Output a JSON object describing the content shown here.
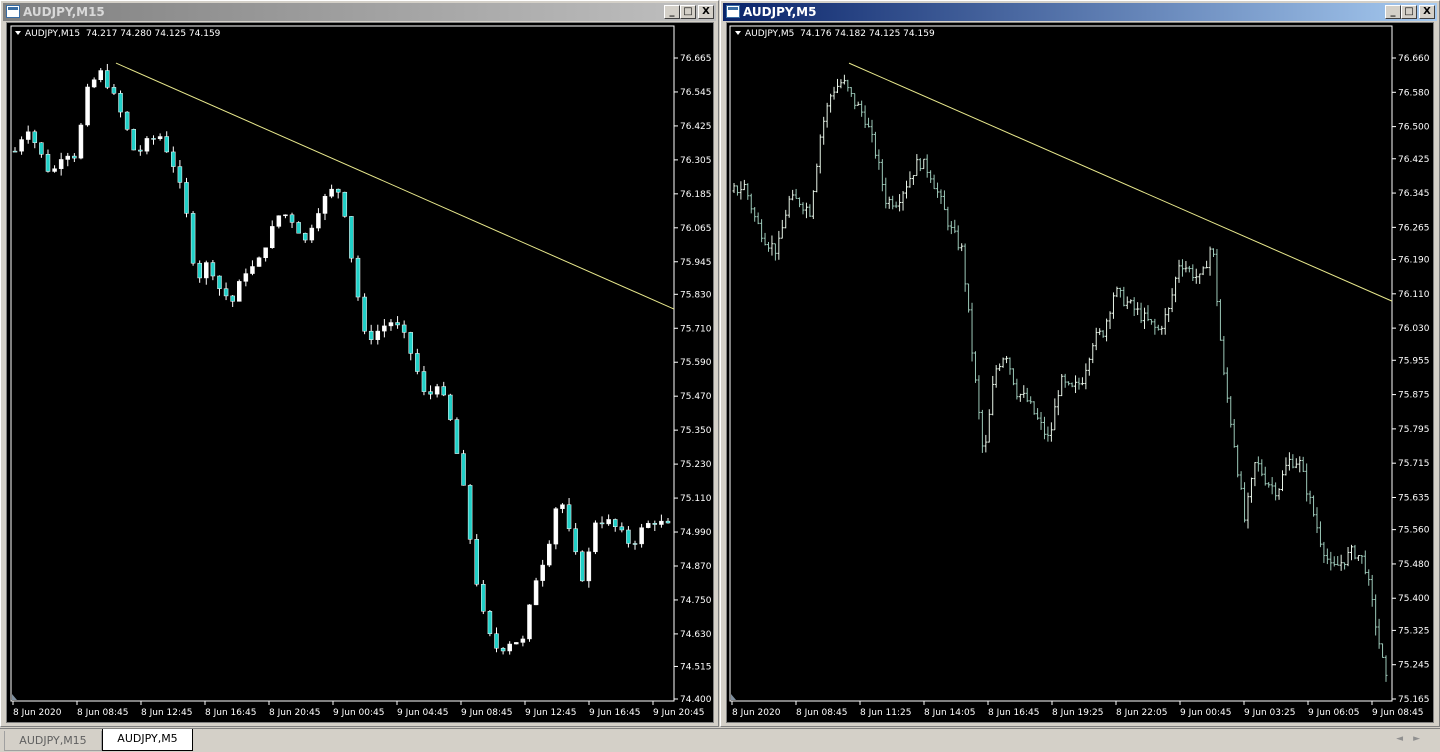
{
  "windows": [
    {
      "title": "AUDJPY,M15",
      "active": false,
      "symbol_info": "AUDJPY,M15  74.217 74.280 74.125 74.159",
      "chart_data": {
        "type": "candlestick",
        "symbol": "AUDJPY",
        "timeframe": "M15",
        "bull_color": "#ffffff",
        "bear_color": "#20d0c8",
        "trendline_color": "#e8e88c",
        "yticks": [
          "76.665",
          "76.545",
          "76.425",
          "76.305",
          "76.185",
          "76.065",
          "75.945",
          "75.830",
          "75.710",
          "75.590",
          "75.470",
          "75.350",
          "75.230",
          "75.110",
          "74.990",
          "74.870",
          "74.750",
          "74.630",
          "74.515",
          "74.400"
        ],
        "ylim": [
          74.4,
          76.665
        ],
        "xticks": [
          "8 Jun 2020",
          "8 Jun 08:45",
          "8 Jun 12:45",
          "8 Jun 16:45",
          "8 Jun 20:45",
          "9 Jun 00:45",
          "9 Jun 04:45",
          "9 Jun 08:45",
          "9 Jun 12:45",
          "9 Jun 16:45",
          "9 Jun 20:45"
        ],
        "close_path": [
          76.336,
          76.425,
          76.336,
          76.248,
          76.336,
          76.319,
          76.548,
          76.619,
          76.548,
          76.442,
          76.319,
          76.372,
          76.389,
          76.301,
          76.16,
          75.877,
          75.948,
          75.842,
          75.806,
          75.912,
          75.93,
          76.036,
          76.124,
          76.089,
          76.018,
          76.124,
          76.195,
          76.195,
          75.912,
          75.665,
          75.7,
          75.736,
          75.7,
          75.594,
          75.453,
          75.524,
          75.382,
          75.17,
          74.852,
          74.64,
          74.569,
          74.605,
          74.605,
          74.817,
          74.923,
          75.135,
          74.958,
          74.817,
          75.029,
          75.029,
          74.993,
          74.94,
          75.011,
          75.029,
          75.011
        ],
        "trendline": [
          76.647,
          75.778
        ]
      }
    },
    {
      "title": "AUDJPY,M5",
      "active": true,
      "symbol_info": "AUDJPY,M5  74.176 74.182 74.125 74.159",
      "chart_data": {
        "type": "ohlc-bar",
        "symbol": "AUDJPY",
        "timeframe": "M5",
        "bull_color": "#e8f4e8",
        "bear_color": "#9cc8b8",
        "trendline_color": "#e8e88c",
        "yticks": [
          "76.660",
          "76.580",
          "76.500",
          "76.425",
          "76.345",
          "76.265",
          "76.190",
          "76.110",
          "76.030",
          "75.955",
          "75.875",
          "75.795",
          "75.715",
          "75.635",
          "75.560",
          "75.480",
          "75.400",
          "75.325",
          "75.245",
          "75.165"
        ],
        "ylim": [
          75.165,
          76.66
        ],
        "xticks": [
          "8 Jun 2020",
          "8 Jun 08:45",
          "8 Jun 11:25",
          "8 Jun 14:05",
          "8 Jun 16:45",
          "8 Jun 19:25",
          "8 Jun 22:05",
          "9 Jun 00:45",
          "9 Jun 03:25",
          "9 Jun 06:05",
          "9 Jun 08:45"
        ],
        "close_path": [
          76.35,
          76.362,
          76.28,
          76.233,
          76.21,
          76.327,
          76.327,
          76.303,
          76.49,
          76.583,
          76.606,
          76.56,
          76.525,
          76.443,
          76.327,
          76.327,
          76.373,
          76.42,
          76.396,
          76.327,
          76.257,
          76.21,
          75.953,
          75.72,
          75.93,
          75.977,
          75.883,
          75.86,
          75.813,
          75.767,
          75.907,
          75.883,
          75.907,
          76.0,
          76.023,
          76.117,
          76.093,
          76.07,
          76.047,
          76.023,
          76.07,
          76.187,
          76.163,
          76.14,
          76.233,
          75.93,
          75.767,
          75.58,
          75.72,
          75.674,
          75.65,
          75.72,
          75.72,
          75.627,
          75.534,
          75.464,
          75.487,
          75.51,
          75.487,
          75.347,
          75.207
        ],
        "trendline": [
          76.648,
          76.093
        ]
      }
    }
  ],
  "tabs": [
    {
      "label": "AUDJPY,M15",
      "active": false
    },
    {
      "label": "AUDJPY,M5",
      "active": true
    }
  ],
  "window_buttons": {
    "minimize": "_",
    "maximize": "□",
    "close": "X"
  },
  "scroll_arrows": {
    "left": "◄",
    "right": "►"
  }
}
